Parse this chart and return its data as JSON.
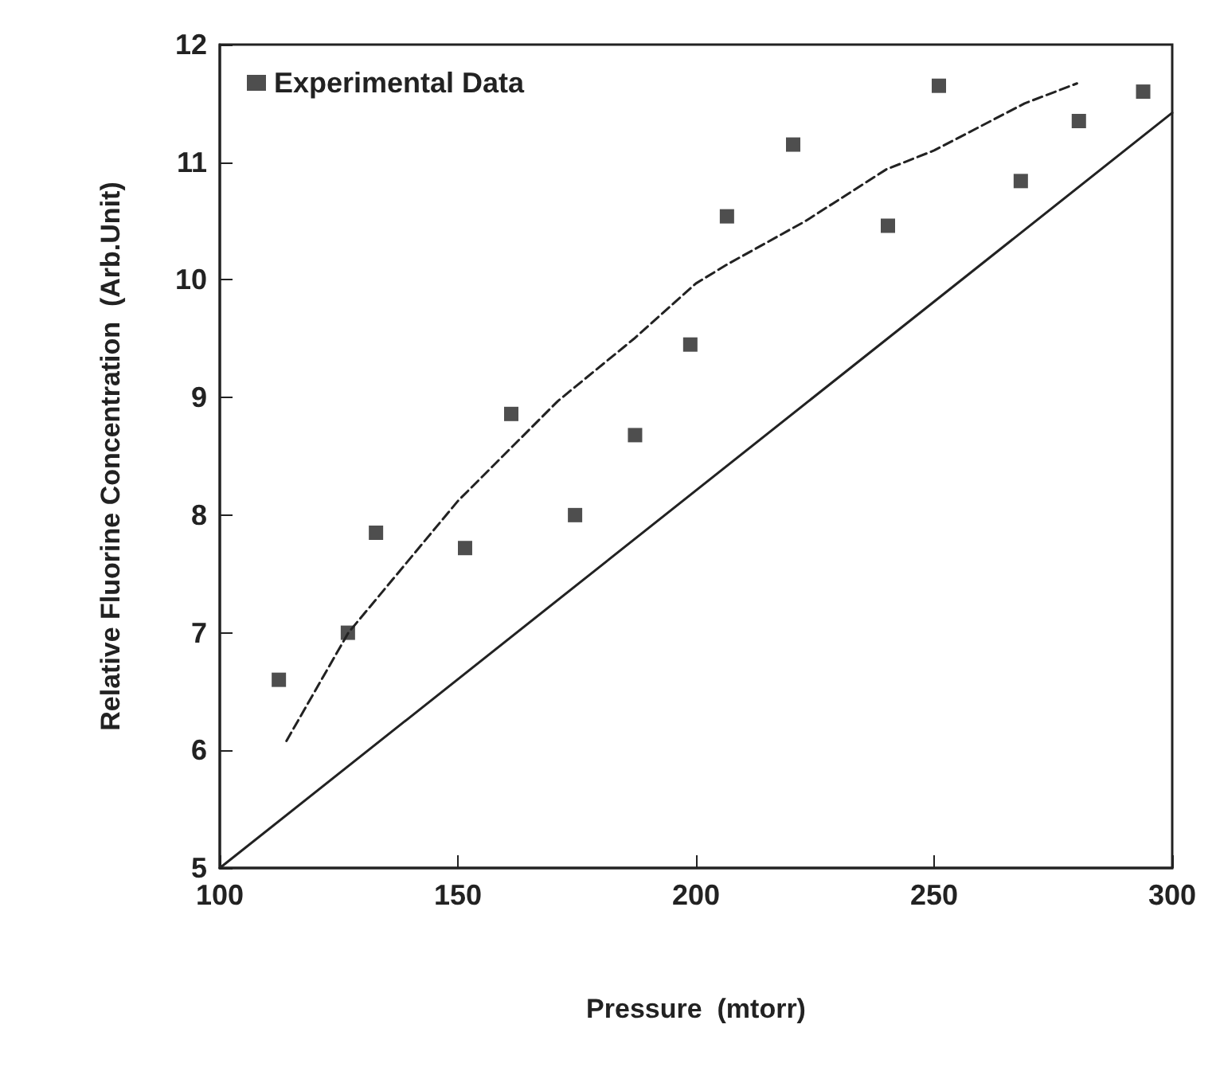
{
  "chart_data": {
    "type": "scatter",
    "xlabel": "Pressure  (mtorr)",
    "ylabel": "Relative Fluorine Concentration  (Arb.Unit)",
    "xlim": [
      100,
      300
    ],
    "xticks": [
      100,
      150,
      200,
      250,
      300
    ],
    "ylim": [
      5,
      12
    ],
    "yticks": [
      5,
      6,
      7,
      8,
      9,
      10,
      11,
      12
    ],
    "grid": false,
    "legend": "top left",
    "series": [
      {
        "name": "Experimental Data",
        "marker": "square",
        "color": "#222222",
        "x": [
          112.4,
          126.9,
          132.8,
          151.5,
          161.2,
          174.6,
          187.2,
          198.8,
          206.5,
          220.4,
          240.3,
          251.0,
          268.2,
          280.4,
          293.9
        ],
        "values": [
          6.6,
          7.0,
          7.85,
          7.72,
          8.86,
          8.0,
          8.68,
          9.45,
          10.54,
          11.15,
          10.46,
          11.65,
          10.84,
          11.35,
          11.6
        ]
      },
      {
        "type": "line",
        "line_style": "dashed",
        "marker": "none",
        "color": "#222222",
        "x": [
          114,
          127,
          150,
          171,
          187,
          200,
          206.5,
          223,
          240,
          250,
          269,
          280
        ],
        "values": [
          6.08,
          7.0,
          8.12,
          8.97,
          9.5,
          9.97,
          10.13,
          10.5,
          10.94,
          11.1,
          11.5,
          11.67
        ]
      },
      {
        "type": "line",
        "line_style": "solid",
        "marker": "none",
        "color": "#222222",
        "x": [
          100,
          300
        ],
        "values": [
          5,
          11.42
        ]
      }
    ]
  }
}
